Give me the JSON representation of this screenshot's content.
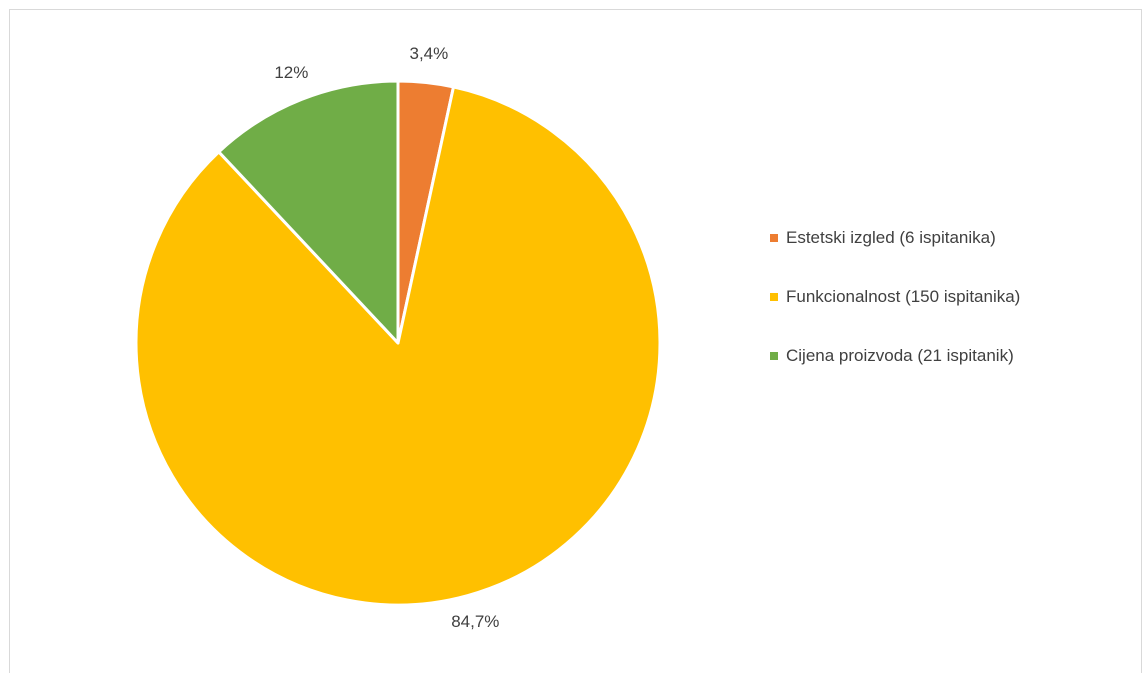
{
  "chart_data": {
    "type": "pie",
    "title": "",
    "series": [
      {
        "values": [
          3.4,
          84.7,
          12
        ]
      }
    ],
    "slices": [
      {
        "label": "Estetski izgled (6 ispitanika)",
        "value": 3.4,
        "display": "3,4%",
        "color": "#ED7D31"
      },
      {
        "label": "Funkcionalnost (150 ispitanika)",
        "value": 84.7,
        "display": "84,7%",
        "color": "#FFC000"
      },
      {
        "label": "Cijena proizvoda (21 ispitanik)",
        "value": 12,
        "display": "12%",
        "color": "#70AD47"
      }
    ],
    "legend_position": "right",
    "start_angle": "12 o'clock, clockwise"
  }
}
